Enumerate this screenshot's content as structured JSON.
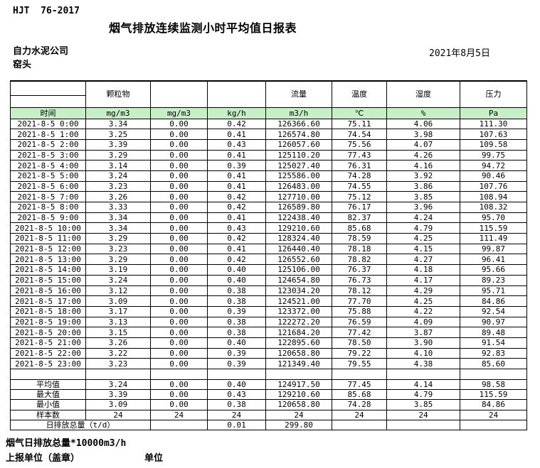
{
  "doc_code": "HJT  76-2017",
  "title": "烟气排放连续监测小时平均值日报表",
  "company": "自力水泥公司",
  "location": "窑头",
  "date": "2021年8月5日",
  "colors": {
    "header_green": "#c6efc6"
  },
  "table": {
    "time_label": "时间",
    "group_headers": [
      "颗粒物",
      "",
      "",
      "流量",
      "温度",
      "湿度",
      "压力"
    ],
    "units": [
      "mg/m3",
      "mg/m3",
      "kg/h",
      "m3/h",
      "℃",
      "%",
      "Pa"
    ],
    "rows": [
      {
        "time": "2021-8-5 0:00",
        "values": [
          "3.34",
          "0.00",
          "0.42",
          "126366.60",
          "75.11",
          "4.06",
          "111.30"
        ]
      },
      {
        "time": "2021-8-5 1:00",
        "values": [
          "3.25",
          "0.00",
          "0.41",
          "126574.80",
          "74.54",
          "3.98",
          "107.63"
        ]
      },
      {
        "time": "2021-8-5 2:00",
        "values": [
          "3.39",
          "0.00",
          "0.43",
          "126057.60",
          "75.56",
          "4.07",
          "109.58"
        ]
      },
      {
        "time": "2021-8-5 3:00",
        "values": [
          "3.29",
          "0.00",
          "0.41",
          "125110.20",
          "77.43",
          "4.26",
          "99.75"
        ]
      },
      {
        "time": "2021-8-5 4:00",
        "values": [
          "3.14",
          "0.00",
          "0.39",
          "125027.40",
          "76.31",
          "4.16",
          "94.72"
        ]
      },
      {
        "time": "2021-8-5 5:00",
        "values": [
          "3.24",
          "0.00",
          "0.41",
          "125586.00",
          "74.28",
          "3.92",
          "90.46"
        ]
      },
      {
        "time": "2021-8-5 6:00",
        "values": [
          "3.23",
          "0.00",
          "0.41",
          "126483.00",
          "74.55",
          "3.86",
          "107.76"
        ]
      },
      {
        "time": "2021-8-5 7:00",
        "values": [
          "3.26",
          "0.00",
          "0.42",
          "127710.00",
          "75.12",
          "3.85",
          "108.94"
        ]
      },
      {
        "time": "2021-8-5 8:00",
        "values": [
          "3.33",
          "0.00",
          "0.42",
          "126589.80",
          "76.17",
          "3.96",
          "108.32"
        ]
      },
      {
        "time": "2021-8-5 9:00",
        "values": [
          "3.34",
          "0.00",
          "0.41",
          "122438.40",
          "82.37",
          "4.24",
          "95.70"
        ]
      },
      {
        "time": "2021-8-5 10:00",
        "values": [
          "3.34",
          "0.00",
          "0.43",
          "129210.60",
          "85.68",
          "4.79",
          "115.59"
        ]
      },
      {
        "time": "2021-8-5 11:00",
        "values": [
          "3.29",
          "0.00",
          "0.42",
          "128324.40",
          "78.59",
          "4.25",
          "111.49"
        ]
      },
      {
        "time": "2021-8-5 12:00",
        "values": [
          "3.23",
          "0.00",
          "0.41",
          "126440.40",
          "78.18",
          "4.15",
          "99.87"
        ]
      },
      {
        "time": "2021-8-5 13:00",
        "values": [
          "3.29",
          "0.00",
          "0.42",
          "126552.60",
          "78.82",
          "4.27",
          "96.41"
        ]
      },
      {
        "time": "2021-8-5 14:00",
        "values": [
          "3.19",
          "0.00",
          "0.40",
          "125106.00",
          "76.37",
          "4.18",
          "95.66"
        ]
      },
      {
        "time": "2021-8-5 15:00",
        "values": [
          "3.24",
          "0.00",
          "0.40",
          "124654.80",
          "76.73",
          "4.17",
          "89.23"
        ]
      },
      {
        "time": "2021-8-5 16:00",
        "values": [
          "3.12",
          "0.00",
          "0.38",
          "123034.20",
          "78.12",
          "4.29",
          "95.71"
        ]
      },
      {
        "time": "2021-8-5 17:00",
        "values": [
          "3.09",
          "0.00",
          "0.38",
          "124521.00",
          "77.70",
          "4.25",
          "84.86"
        ]
      },
      {
        "time": "2021-8-5 18:00",
        "values": [
          "3.17",
          "0.00",
          "0.39",
          "123372.00",
          "75.88",
          "4.22",
          "92.54"
        ]
      },
      {
        "time": "2021-8-5 19:00",
        "values": [
          "3.13",
          "0.00",
          "0.38",
          "122272.20",
          "76.59",
          "4.09",
          "90.97"
        ]
      },
      {
        "time": "2021-8-5 20:00",
        "values": [
          "3.15",
          "0.00",
          "0.38",
          "121684.20",
          "77.42",
          "3.87",
          "89.48"
        ]
      },
      {
        "time": "2021-8-5 21:00",
        "values": [
          "3.26",
          "0.00",
          "0.40",
          "122895.60",
          "78.50",
          "3.90",
          "91.54"
        ]
      },
      {
        "time": "2021-8-5 22:00",
        "values": [
          "3.22",
          "0.00",
          "0.39",
          "120658.80",
          "79.22",
          "4.10",
          "92.83"
        ]
      },
      {
        "time": "2021-8-5 23:00",
        "values": [
          "3.23",
          "0.00",
          "0.39",
          "121349.40",
          "79.55",
          "4.38",
          "85.60"
        ]
      }
    ],
    "summary": [
      {
        "label": "平均值",
        "values": [
          "3.24",
          "0.00",
          "0.40",
          "124917.50",
          "77.45",
          "4.14",
          "98.58"
        ]
      },
      {
        "label": "最大值",
        "values": [
          "3.39",
          "0.00",
          "0.43",
          "129210.60",
          "85.68",
          "4.79",
          "115.59"
        ]
      },
      {
        "label": "最小值",
        "values": [
          "3.09",
          "0.00",
          "0.38",
          "120658.80",
          "74.28",
          "3.85",
          "84.86"
        ]
      },
      {
        "label": "样本数",
        "values": [
          "24",
          "24",
          "24",
          "24",
          "24",
          "24",
          "24"
        ]
      }
    ],
    "daily_total": {
      "label": "日排放总量（t/d）",
      "values": [
        "",
        "0.01",
        "299.80",
        "",
        "",
        ""
      ]
    }
  },
  "footer": {
    "note": "烟气日排放总量*10000m3/h",
    "report_unit_label": "上报单位（盖章）",
    "unit_label": "单位"
  }
}
